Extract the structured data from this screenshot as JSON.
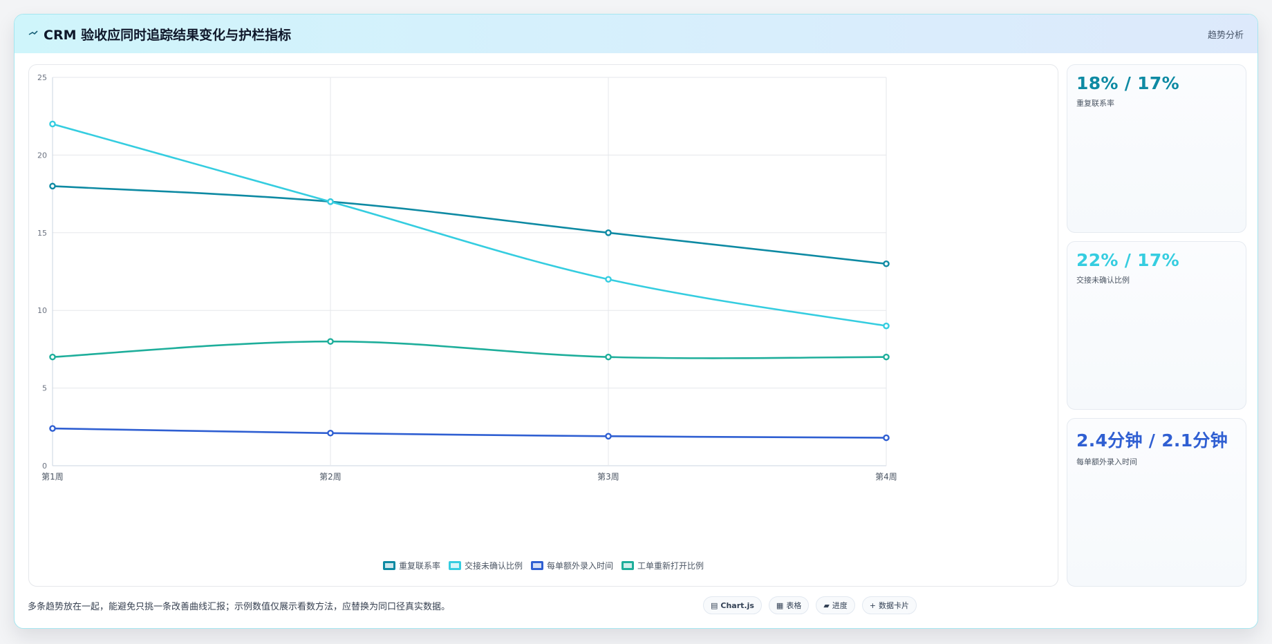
{
  "header": {
    "icon": "chart-trend-icon",
    "title": "CRM 验收应同时追踪结果变化与护栏指标",
    "tag": "趋势分析"
  },
  "chart_data": {
    "type": "line",
    "categories": [
      "第1周",
      "第2周",
      "第3周",
      "第4周"
    ],
    "ylim": [
      0,
      25
    ],
    "yticks": [
      0,
      5,
      10,
      15,
      20,
      25
    ],
    "grid": true,
    "legend_position": "bottom",
    "series": [
      {
        "name": "重复联系率",
        "color": "#0e8aa3",
        "values": [
          18,
          17,
          15,
          13
        ]
      },
      {
        "name": "交接未确认比例",
        "color": "#35cde0",
        "values": [
          22,
          17,
          12,
          9
        ]
      },
      {
        "name": "每单额外录入时间",
        "color": "#2f5fd2",
        "values": [
          2.4,
          2.1,
          1.9,
          1.8
        ]
      },
      {
        "name": "工单重新打开比例",
        "color": "#1eae9b",
        "values": [
          7,
          8,
          7,
          7
        ]
      }
    ]
  },
  "kpis": [
    {
      "value": "18% / 17%",
      "label": "重复联系率",
      "color": "#0e8aa3"
    },
    {
      "value": "22% / 17%",
      "label": "交接未确认比例",
      "color": "#35cde0"
    },
    {
      "value": "2.4分钟 / 2.1分钟",
      "label": "每单额外录入时间",
      "color": "#2f5fd2"
    }
  ],
  "footer": {
    "note": "多条趋势放在一起，能避免只挑一条改善曲线汇报；示例数值仅展示看数方法，应替换为同口径真实数据。",
    "chips": [
      {
        "icon": "chart-icon",
        "glyph": "▤",
        "label": "Chart.js"
      },
      {
        "icon": "table-icon",
        "glyph": "▦",
        "label": "表格"
      },
      {
        "icon": "progress-icon",
        "glyph": "▰",
        "label": "进度"
      },
      {
        "icon": "data-card-icon",
        "glyph": "+",
        "label": "数据卡片"
      }
    ]
  }
}
